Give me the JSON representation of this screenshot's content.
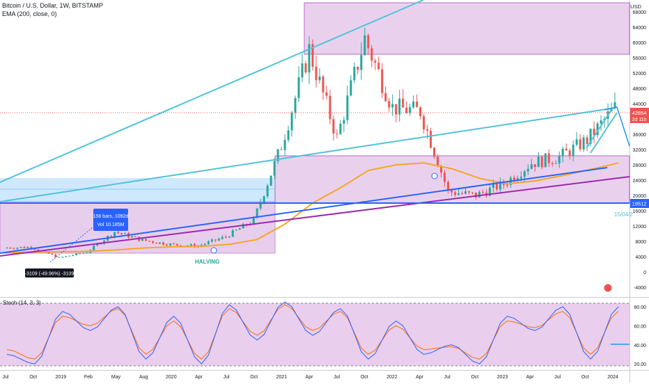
{
  "header": {
    "title": "Bitcoin / U.S. Dollar, 1W, BITSTAMP",
    "indicator": "EMA (200, close, 0)",
    "currency": "USD"
  },
  "price_pane": {
    "price_ticks": [
      "68000",
      "64000",
      "60000",
      "56000",
      "52000",
      "48000",
      "44000",
      "40000",
      "36000",
      "32000",
      "28000",
      "24000",
      "20000",
      "16000",
      "12000",
      "8000",
      "4000",
      "0",
      "-4000"
    ],
    "price_tick_values": [
      68000,
      64000,
      60000,
      56000,
      52000,
      48000,
      44000,
      40000,
      36000,
      32000,
      28000,
      24000,
      20000,
      16000,
      12000,
      8000,
      4000,
      0,
      -4000
    ],
    "last_price_label": "42854",
    "countdown_label": "2d 11h",
    "level_label": "19512",
    "date_label": "15/04/2",
    "measure_box": {
      "line1": "156 bars, 1092d",
      "line2": "Vol 10.185M"
    },
    "drawdown_label": "-3109 (-49.96%) -3109",
    "halving_label": "HALVING",
    "colors": {
      "up": "#26a69a",
      "down": "#ef5350",
      "ema": "#f5a623",
      "cyan": "#4fc3d9",
      "blue": "#2962ff",
      "purple": "#9c27b0",
      "box": "#e1bee7",
      "box_stroke": "#9c27b0",
      "lightblue": "#bbdefb",
      "price_badge": "#ef5350",
      "level_badge": "#2962ff"
    }
  },
  "stoch_pane": {
    "label": "Stoch (14, 3, 3)",
    "ticks": [
      "80.00",
      "60.00",
      "40.00",
      "20.00"
    ],
    "tick_values": [
      80,
      60,
      40,
      20
    ],
    "colors": {
      "k": "#2962ff",
      "d": "#ff6d00",
      "band": "#e1bee7"
    }
  },
  "time_axis": {
    "labels": [
      "Jul",
      "Oct",
      "2019",
      "Feb",
      "May",
      "Aug",
      "2020",
      "Apr",
      "Jul",
      "Oct",
      "2021",
      "Apr",
      "Jul",
      "Oct",
      "2022",
      "Apr",
      "Jul",
      "Oct",
      "2023",
      "Apr",
      "Jul",
      "Oct",
      "2024"
    ]
  },
  "chart_data": {
    "type": "candlestick",
    "title": "Bitcoin / U.S. Dollar, 1W, BITSTAMP",
    "ylabel": "USD",
    "ylim": [
      -6000,
      70000
    ],
    "x": [
      "2018-07",
      "2018-10",
      "2019-01",
      "2019-04",
      "2019-07",
      "2019-10",
      "2020-01",
      "2020-04",
      "2020-07",
      "2020-10",
      "2021-01",
      "2021-04",
      "2021-07",
      "2021-10",
      "2022-01",
      "2022-04",
      "2022-07",
      "2022-10",
      "2023-01",
      "2023-04",
      "2023-07",
      "2023-10",
      "2024-01"
    ],
    "series": [
      {
        "name": "BTCUSD",
        "values": [
          6300,
          6500,
          3700,
          5200,
          10500,
          8300,
          7200,
          6800,
          9200,
          13500,
          33000,
          58000,
          35000,
          61000,
          43000,
          42000,
          21000,
          20000,
          23000,
          28500,
          30000,
          34500,
          42854
        ]
      },
      {
        "name": "EMA (200, close, 0)",
        "values": [
          5000,
          5200,
          5300,
          5400,
          5800,
          6300,
          6600,
          6700,
          7200,
          8500,
          12500,
          18000,
          22000,
          26500,
          28000,
          28500,
          27000,
          24500,
          23000,
          23800,
          25200,
          26800,
          28500
        ]
      }
    ],
    "stoch": {
      "name": "Stoch (14, 3, 3)",
      "ylim": [
        15,
        88
      ],
      "k": [
        30,
        20,
        75,
        55,
        80,
        25,
        70,
        20,
        82,
        45,
        85,
        50,
        78,
        25,
        65,
        30,
        40,
        20,
        70,
        55,
        80,
        25,
        80
      ],
      "d": [
        35,
        25,
        70,
        60,
        78,
        30,
        65,
        25,
        78,
        50,
        82,
        55,
        75,
        30,
        60,
        35,
        38,
        25,
        65,
        58,
        75,
        30,
        75
      ]
    }
  }
}
